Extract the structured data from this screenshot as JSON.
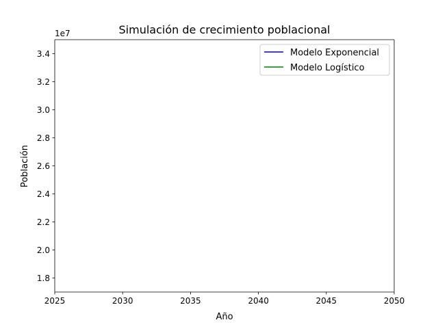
{
  "chart_data": {
    "type": "line",
    "title": "Simulación de crecimiento poblacional",
    "xlabel": "Año",
    "ylabel": "Población",
    "y_offset_label": "1e7",
    "xlim": [
      2025,
      2050
    ],
    "ylim": [
      1.7,
      3.5
    ],
    "x_ticks": [
      2025,
      2030,
      2035,
      2040,
      2045,
      2050
    ],
    "x_tick_labels": [
      "2025",
      "2030",
      "2035",
      "2040",
      "2045",
      "2050"
    ],
    "y_ticks": [
      1.8,
      2.0,
      2.2,
      2.4,
      2.6,
      2.8,
      3.0,
      3.2,
      3.4
    ],
    "y_tick_labels": [
      "1.8",
      "2.0",
      "2.2",
      "2.4",
      "2.6",
      "2.8",
      "3.0",
      "3.2",
      "3.4"
    ],
    "grid": false,
    "legend_position": "upper right",
    "series": [
      {
        "name": "Modelo Exponencial",
        "color": "#0000bf",
        "x": [],
        "y": []
      },
      {
        "name": "Modelo Logístico",
        "color": "#008000",
        "x": [],
        "y": []
      }
    ]
  }
}
